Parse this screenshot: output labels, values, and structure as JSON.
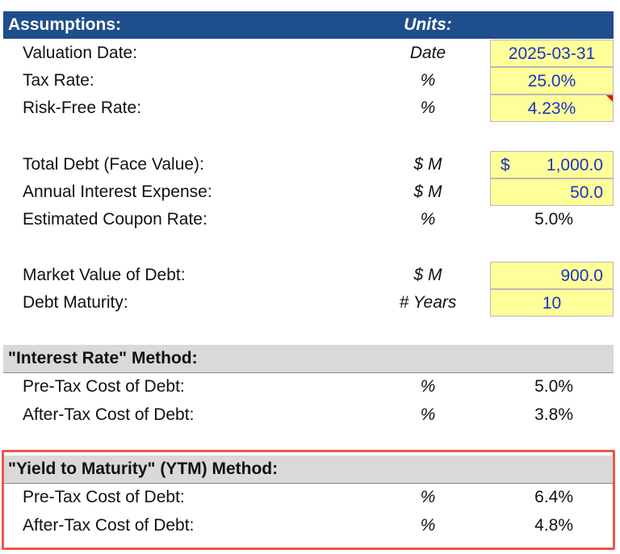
{
  "header": {
    "title": "Assumptions:",
    "units": "Units:"
  },
  "assumptions": [
    {
      "label": "Valuation Date:",
      "unit": "Date",
      "value": "2025-03-31"
    },
    {
      "label": "Tax Rate:",
      "unit": "%",
      "value": "25.0%"
    },
    {
      "label": "Risk-Free Rate:",
      "unit": "%",
      "value": "4.23%"
    },
    {
      "label": "Total Debt (Face Value):",
      "unit": "$ M",
      "currency": "$",
      "value": "1,000.0"
    },
    {
      "label": "Annual Interest Expense:",
      "unit": "$ M",
      "value": "50.0"
    },
    {
      "label": "Estimated Coupon Rate:",
      "unit": "%",
      "value": "5.0%"
    },
    {
      "label": "Market Value of Debt:",
      "unit": "$ M",
      "value": "900.0"
    },
    {
      "label": "Debt Maturity:",
      "unit": "# Years",
      "value": "10"
    }
  ],
  "interest_rate_method": {
    "title": "\"Interest Rate\" Method:",
    "rows": [
      {
        "label": "Pre-Tax Cost of Debt:",
        "unit": "%",
        "value": "5.0%"
      },
      {
        "label": "After-Tax Cost of Debt:",
        "unit": "%",
        "value": "3.8%"
      }
    ]
  },
  "ytm_method": {
    "title": "\"Yield to Maturity\" (YTM) Method:",
    "rows": [
      {
        "label": "Pre-Tax Cost of Debt:",
        "unit": "%",
        "value": "6.4%"
      },
      {
        "label": "After-Tax Cost of Debt:",
        "unit": "%",
        "value": "4.8%"
      }
    ]
  }
}
